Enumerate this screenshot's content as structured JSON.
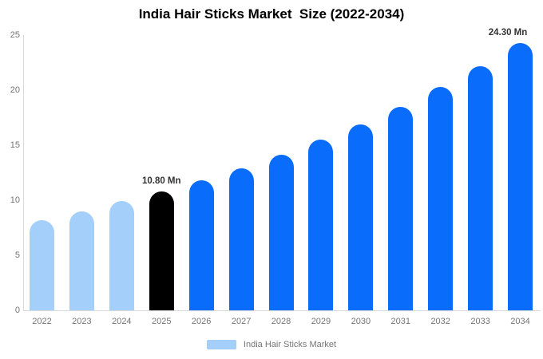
{
  "title": "India Hair Sticks Market  Size (2022-2034)",
  "colors": {
    "past_bar": "#A3CFFA",
    "current_bar": "#000000",
    "forecast_bar": "#0A6CFA",
    "axis_line": "#d9d9d9",
    "tick_text": "#757575",
    "annotation_text": "#333333",
    "title_text": "#000000",
    "background": "#ffffff"
  },
  "chart_data": {
    "type": "bar",
    "title": "India Hair Sticks Market  Size (2022-2034)",
    "xlabel": "",
    "ylabel": "",
    "unit": "Mn",
    "categories": [
      "2022",
      "2023",
      "2024",
      "2025",
      "2026",
      "2027",
      "2028",
      "2029",
      "2030",
      "2031",
      "2032",
      "2033",
      "2034"
    ],
    "values": [
      8.2,
      9.0,
      9.9,
      10.8,
      11.8,
      12.9,
      14.1,
      15.5,
      16.9,
      18.5,
      20.3,
      22.2,
      24.3
    ],
    "bar_colors": [
      "#A3CFFA",
      "#A3CFFA",
      "#A3CFFA",
      "#000000",
      "#0A6CFA",
      "#0A6CFA",
      "#0A6CFA",
      "#0A6CFA",
      "#0A6CFA",
      "#0A6CFA",
      "#0A6CFA",
      "#0A6CFA",
      "#0A6CFA"
    ],
    "ylim": [
      0,
      25
    ],
    "yticks": [
      "0",
      "5",
      "10",
      "15",
      "20",
      "25"
    ],
    "grid": false,
    "annotations": [
      {
        "category": "2025",
        "index": 3,
        "text": "10.80 Mn"
      },
      {
        "category": "2034",
        "index": 12,
        "text": "24.30 Mn"
      }
    ],
    "legend": {
      "label": "India Hair Sticks Market",
      "swatch_color": "#A3CFFA",
      "position": "bottom"
    }
  }
}
